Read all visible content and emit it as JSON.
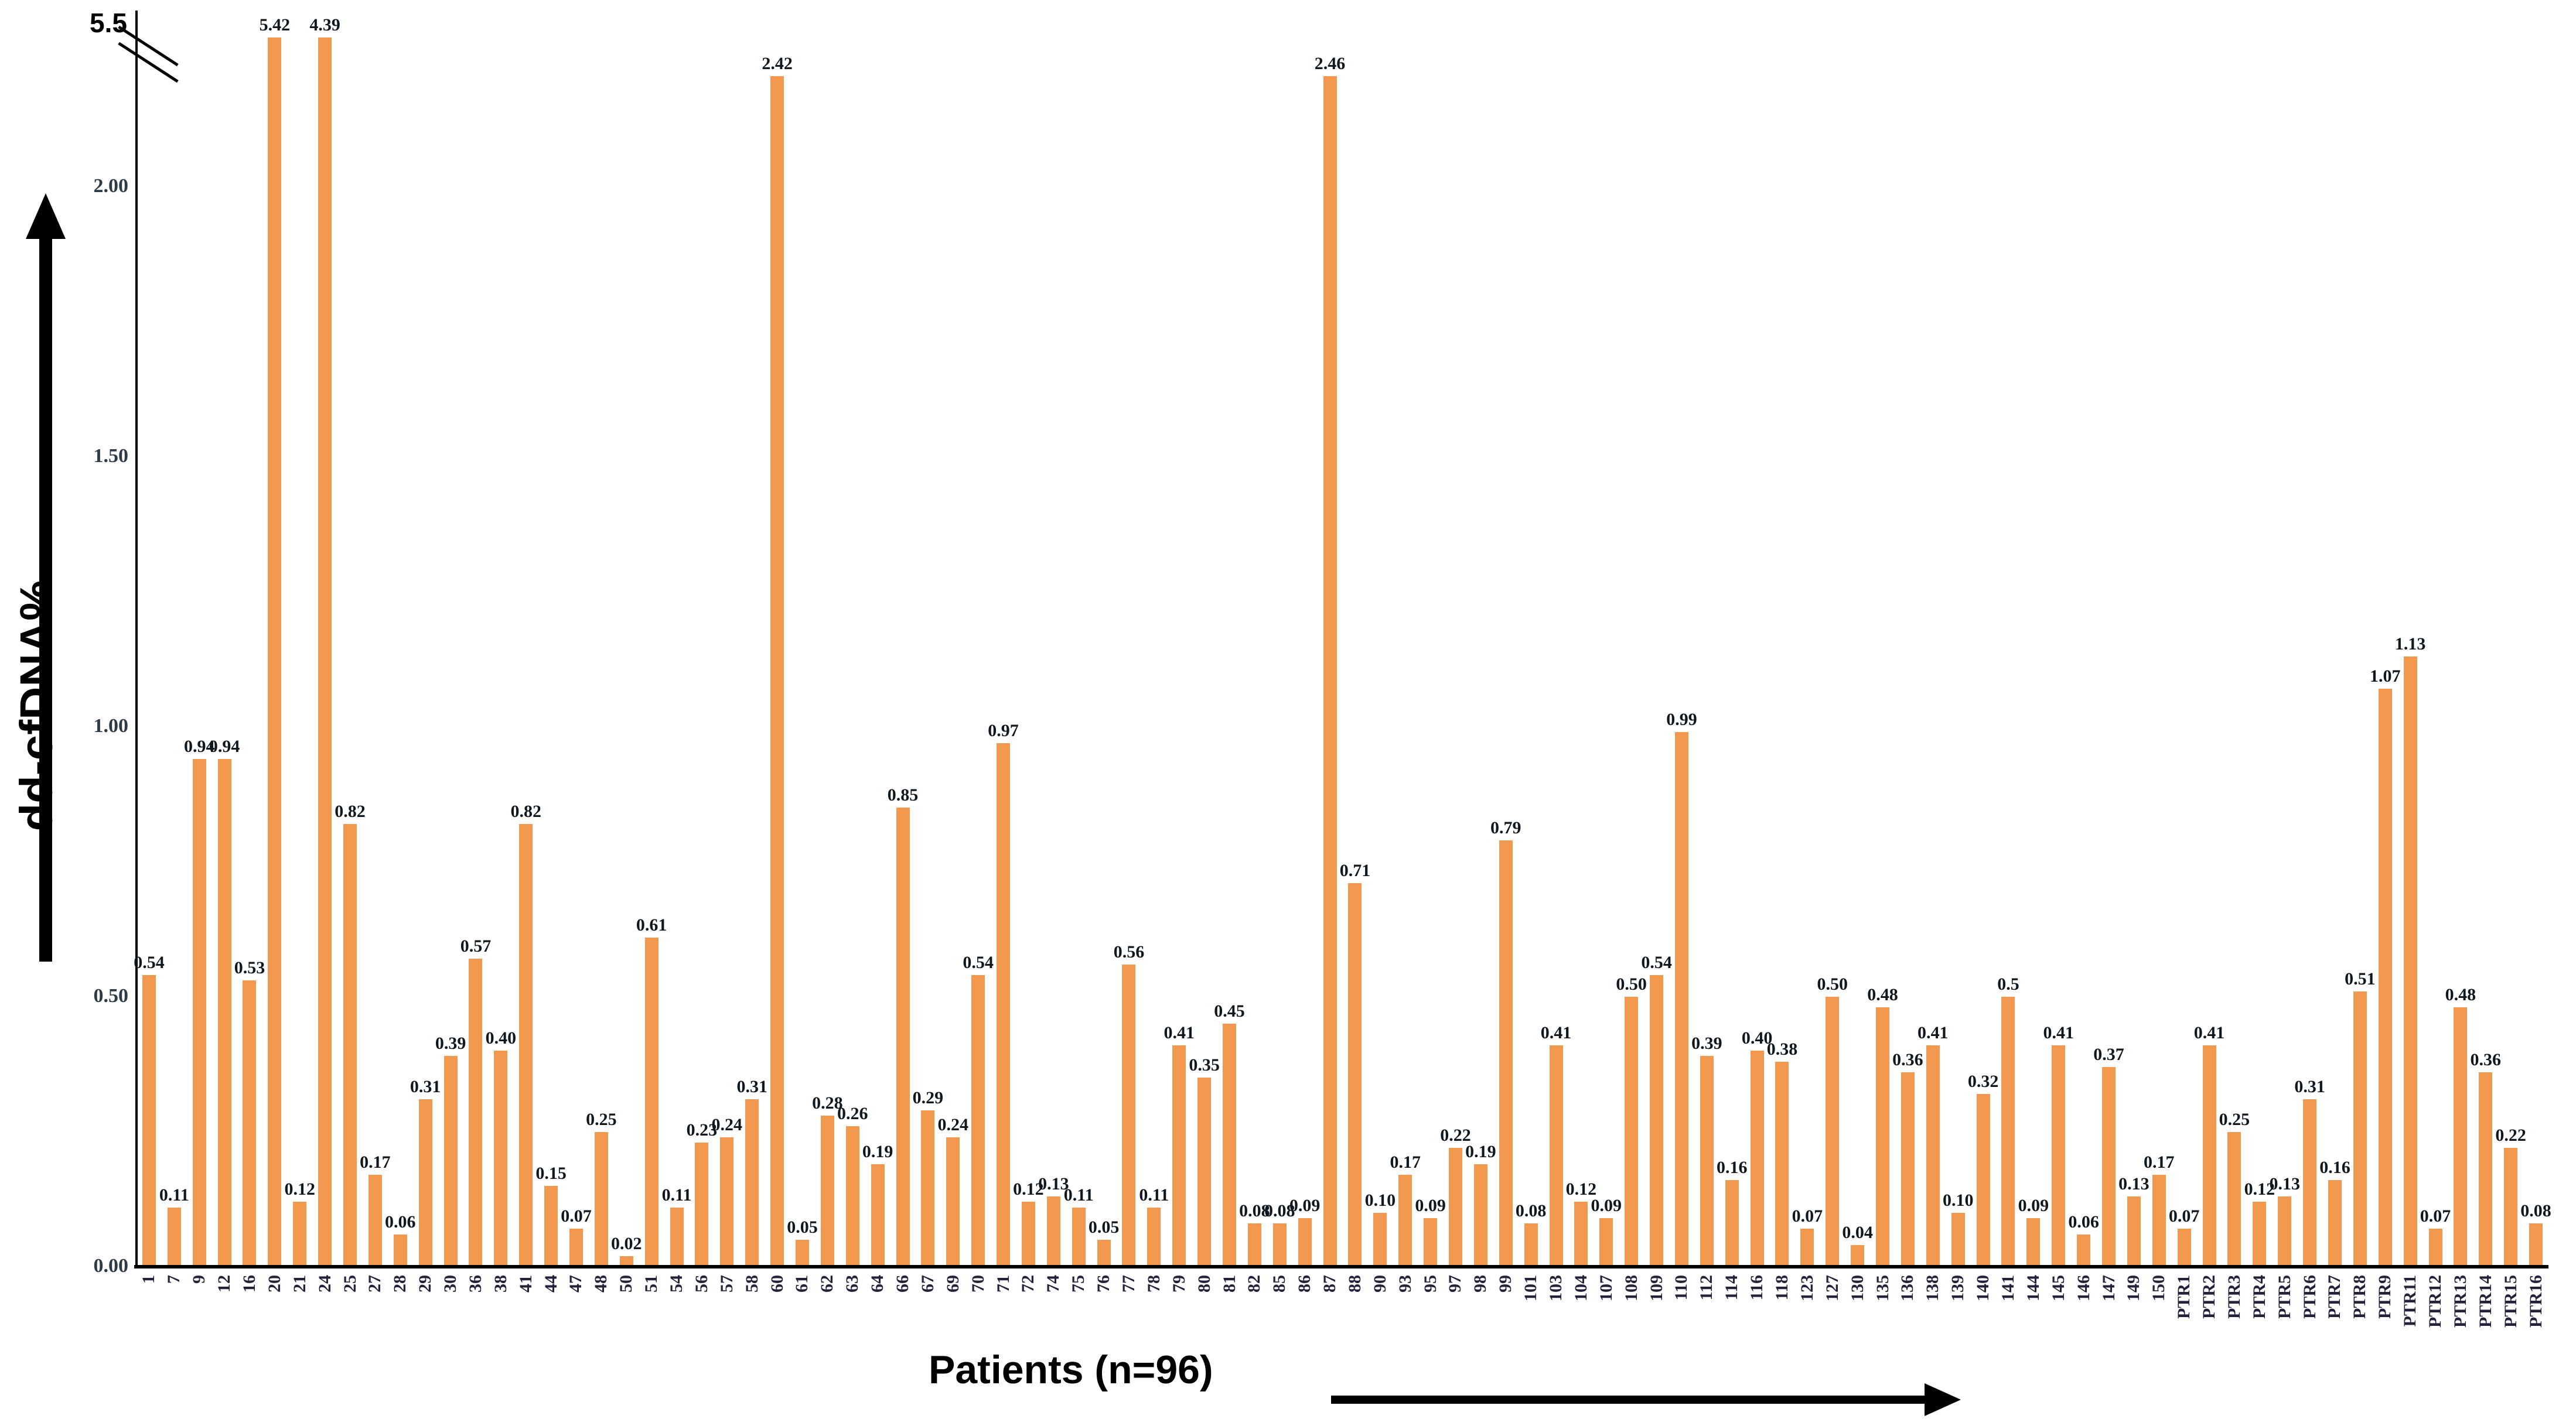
{
  "chart_data": {
    "type": "bar",
    "title": "",
    "xlabel": "Patients (n=96)",
    "ylabel": "dd-cfDNA%",
    "bar_color": "#F2994F",
    "legend": "none",
    "grid": false,
    "axis_break": true,
    "axis_break_between": [
      2.25,
      5.4
    ],
    "ylim": [
      0,
      5.5
    ],
    "y_top_tick": "5.5",
    "y_ticks": [
      {
        "label": "0.00",
        "value": 0.0
      },
      {
        "label": "0.50",
        "value": 0.5
      },
      {
        "label": "1.00",
        "value": 1.0
      },
      {
        "label": "1.50",
        "value": 1.5
      },
      {
        "label": "2.00",
        "value": 2.0
      }
    ],
    "categories": [
      "1",
      "7",
      "9",
      "12",
      "16",
      "20",
      "21",
      "24",
      "25",
      "27",
      "28",
      "29",
      "30",
      "36",
      "38",
      "41",
      "44",
      "47",
      "48",
      "50",
      "51",
      "54",
      "56",
      "57",
      "58",
      "60",
      "61",
      "62",
      "63",
      "64",
      "66",
      "67",
      "69",
      "70",
      "71",
      "72",
      "74",
      "75",
      "76",
      "77",
      "78",
      "79",
      "80",
      "81",
      "82",
      "85",
      "86",
      "87",
      "88",
      "90",
      "93",
      "95",
      "97",
      "98",
      "99",
      "101",
      "103",
      "104",
      "107",
      "108",
      "109",
      "110",
      "112",
      "114",
      "116",
      "118",
      "123",
      "127",
      "130",
      "135",
      "136",
      "138",
      "139",
      "140",
      "141",
      "144",
      "145",
      "146",
      "147",
      "149",
      "150",
      "PTR1",
      "PTR2",
      "PTR3",
      "PTR4",
      "PTR5",
      "PTR6",
      "PTR7",
      "PTR8",
      "PTR9",
      "PTR11",
      "PTR12",
      "PTR13",
      "PTR14",
      "PTR15",
      "PTR16"
    ],
    "values": [
      "0.54",
      "0.11",
      "0.94",
      "0.94",
      "0.53",
      "5.42",
      "0.12",
      "4.39",
      "0.82",
      "0.17",
      "0.06",
      "0.31",
      "0.39",
      "0.57",
      "0.40",
      "0.82",
      "0.15",
      "0.07",
      "0.25",
      "0.02",
      "0.61",
      "0.11",
      "0.23",
      "0.24",
      "0.31",
      "2.42",
      "0.05",
      "0.28",
      "0.26",
      "0.19",
      "0.85",
      "0.29",
      "0.24",
      "0.54",
      "0.97",
      "0.12",
      "0.13",
      "0.11",
      "0.05",
      "0.56",
      "0.11",
      "0.41",
      "0.35",
      "0.45",
      "0.08",
      "0.08",
      "0.09",
      "2.46",
      "0.71",
      "0.10",
      "0.17",
      "0.09",
      "0.22",
      "0.19",
      "0.79",
      "0.08",
      "0.41",
      "0.12",
      "0.09",
      "0.50",
      "0.54",
      "0.99",
      "0.39",
      "0.16",
      "0.40",
      "0.38",
      "0.07",
      "0.50",
      "0.04",
      "0.48",
      "0.36",
      "0.41",
      "0.10",
      "0.32",
      "0.5",
      "0.09",
      "0.41",
      "0.06",
      "0.37",
      "0.13",
      "0.17",
      "0.07",
      "0.41",
      "0.25",
      "0.12",
      "0.13",
      "0.31",
      "0.16",
      "0.51",
      "1.07",
      "1.13",
      "0.07",
      "0.48",
      "0.36",
      "0.22",
      "0.08"
    ]
  }
}
